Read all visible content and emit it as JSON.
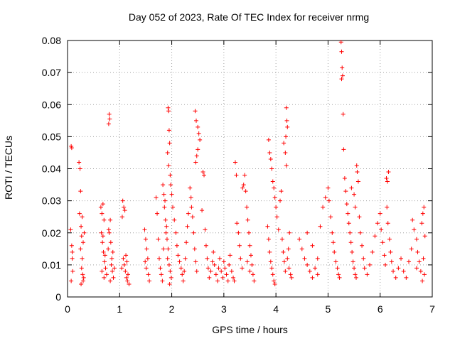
{
  "chart_data": {
    "type": "scatter",
    "title": "Day 052 of 2023, Rate Of TEC Index for receiver nrmg",
    "xlabel": "GPS time / hours",
    "ylabel": "ROTI / TECUs",
    "xlim": [
      0,
      7
    ],
    "ylim": [
      0,
      0.08
    ],
    "xticks": [
      "0",
      "1",
      "2",
      "3",
      "4",
      "5",
      "6",
      "7"
    ],
    "yticks": [
      "0",
      "0.01",
      "0.02",
      "0.03",
      "0.04",
      "0.05",
      "0.06",
      "0.07",
      "0.08"
    ],
    "grid": true,
    "marker": "+",
    "color": "#ff0000",
    "series": [
      {
        "name": "ROTI",
        "points": [
          [
            0.07,
            0.047
          ],
          [
            0.08,
            0.0465
          ],
          [
            0.06,
            0.021
          ],
          [
            0.08,
            0.016
          ],
          [
            0.09,
            0.012
          ],
          [
            0.1,
            0.008
          ],
          [
            0.07,
            0.005
          ],
          [
            0.09,
            0.014
          ],
          [
            0.22,
            0.042
          ],
          [
            0.24,
            0.04
          ],
          [
            0.25,
            0.033
          ],
          [
            0.23,
            0.026
          ],
          [
            0.26,
            0.022
          ],
          [
            0.27,
            0.019
          ],
          [
            0.25,
            0.015
          ],
          [
            0.28,
            0.012
          ],
          [
            0.27,
            0.009
          ],
          [
            0.29,
            0.007
          ],
          [
            0.3,
            0.005
          ],
          [
            0.26,
            0.004
          ],
          [
            0.31,
            0.006
          ],
          [
            0.28,
            0.025
          ],
          [
            0.32,
            0.02
          ],
          [
            0.3,
            0.017
          ],
          [
            0.64,
            0.028
          ],
          [
            0.66,
            0.026
          ],
          [
            0.68,
            0.029
          ],
          [
            0.7,
            0.024
          ],
          [
            0.65,
            0.02
          ],
          [
            0.67,
            0.017
          ],
          [
            0.69,
            0.014
          ],
          [
            0.71,
            0.011
          ],
          [
            0.73,
            0.009
          ],
          [
            0.75,
            0.007
          ],
          [
            0.66,
            0.008
          ],
          [
            0.7,
            0.006
          ],
          [
            0.72,
            0.013
          ],
          [
            0.68,
            0.019
          ],
          [
            0.8,
            0.057
          ],
          [
            0.81,
            0.0555
          ],
          [
            0.79,
            0.054
          ],
          [
            0.82,
            0.024
          ],
          [
            0.8,
            0.02
          ],
          [
            0.83,
            0.017
          ],
          [
            0.78,
            0.015
          ],
          [
            0.85,
            0.012
          ],
          [
            0.84,
            0.01
          ],
          [
            0.86,
            0.008
          ],
          [
            0.88,
            0.006
          ],
          [
            0.82,
            0.005
          ],
          [
            0.9,
            0.009
          ],
          [
            0.87,
            0.014
          ],
          [
            0.79,
            0.021
          ],
          [
            1.06,
            0.03
          ],
          [
            1.08,
            0.028
          ],
          [
            1.1,
            0.027
          ],
          [
            1.05,
            0.025
          ],
          [
            1.07,
            0.012
          ],
          [
            1.09,
            0.01
          ],
          [
            1.11,
            0.008
          ],
          [
            1.13,
            0.006
          ],
          [
            1.15,
            0.005
          ],
          [
            1.12,
            0.013
          ],
          [
            1.04,
            0.009
          ],
          [
            1.14,
            0.011
          ],
          [
            1.16,
            0.007
          ],
          [
            1.18,
            0.004
          ],
          [
            1.48,
            0.021
          ],
          [
            1.5,
            0.018
          ],
          [
            1.52,
            0.015
          ],
          [
            1.54,
            0.012
          ],
          [
            1.51,
            0.009
          ],
          [
            1.55,
            0.007
          ],
          [
            1.57,
            0.005
          ],
          [
            1.49,
            0.011
          ],
          [
            1.7,
            0.031
          ],
          [
            1.72,
            0.026
          ],
          [
            1.74,
            0.018
          ],
          [
            1.76,
            0.012
          ],
          [
            1.78,
            0.009
          ],
          [
            1.8,
            0.007
          ],
          [
            1.82,
            0.005
          ],
          [
            1.84,
            0.015
          ],
          [
            1.83,
            0.035
          ],
          [
            1.85,
            0.032
          ],
          [
            1.87,
            0.03
          ],
          [
            1.86,
            0.028
          ],
          [
            1.88,
            0.024
          ],
          [
            1.9,
            0.022
          ],
          [
            1.89,
            0.02
          ],
          [
            1.91,
            0.018
          ],
          [
            1.93,
            0.015
          ],
          [
            1.92,
            0.012
          ],
          [
            1.95,
            0.01
          ],
          [
            1.97,
            0.008
          ],
          [
            1.99,
            0.006
          ],
          [
            1.96,
            0.004
          ],
          [
            1.93,
            0.059
          ],
          [
            1.94,
            0.058
          ],
          [
            1.95,
            0.052
          ],
          [
            1.96,
            0.048
          ],
          [
            1.92,
            0.045
          ],
          [
            1.94,
            0.041
          ],
          [
            1.97,
            0.038
          ],
          [
            1.98,
            0.035
          ],
          [
            2.0,
            0.032
          ],
          [
            2.02,
            0.028
          ],
          [
            2.05,
            0.024
          ],
          [
            2.08,
            0.02
          ],
          [
            2.1,
            0.016
          ],
          [
            2.12,
            0.013
          ],
          [
            2.15,
            0.011
          ],
          [
            2.18,
            0.009
          ],
          [
            2.2,
            0.007
          ],
          [
            2.22,
            0.005
          ],
          [
            2.24,
            0.008
          ],
          [
            2.26,
            0.012
          ],
          [
            2.28,
            0.017
          ],
          [
            2.3,
            0.022
          ],
          [
            2.32,
            0.026
          ],
          [
            2.35,
            0.034
          ],
          [
            2.37,
            0.031
          ],
          [
            2.38,
            0.028
          ],
          [
            2.4,
            0.025
          ],
          [
            2.42,
            0.02
          ],
          [
            2.44,
            0.015
          ],
          [
            2.46,
            0.011
          ],
          [
            2.48,
            0.008
          ],
          [
            2.45,
            0.058
          ],
          [
            2.47,
            0.055
          ],
          [
            2.5,
            0.053
          ],
          [
            2.52,
            0.051
          ],
          [
            2.54,
            0.049
          ],
          [
            2.5,
            0.046
          ],
          [
            2.48,
            0.044
          ],
          [
            2.46,
            0.042
          ],
          [
            2.6,
            0.039
          ],
          [
            2.62,
            0.038
          ],
          [
            2.58,
            0.027
          ],
          [
            2.64,
            0.021
          ],
          [
            2.66,
            0.016
          ],
          [
            2.68,
            0.012
          ],
          [
            2.7,
            0.009
          ],
          [
            2.72,
            0.006
          ],
          [
            2.75,
            0.008
          ],
          [
            2.78,
            0.011
          ],
          [
            2.8,
            0.014
          ],
          [
            2.82,
            0.01
          ],
          [
            2.85,
            0.007
          ],
          [
            2.88,
            0.005
          ],
          [
            2.9,
            0.009
          ],
          [
            2.92,
            0.012
          ],
          [
            2.95,
            0.008
          ],
          [
            2.98,
            0.006
          ],
          [
            3.0,
            0.011
          ],
          [
            3.02,
            0.009
          ],
          [
            3.05,
            0.007
          ],
          [
            3.08,
            0.005
          ],
          [
            3.1,
            0.01
          ],
          [
            3.12,
            0.013
          ],
          [
            3.15,
            0.008
          ],
          [
            3.18,
            0.006
          ],
          [
            3.2,
            0.005
          ],
          [
            3.22,
            0.042
          ],
          [
            3.24,
            0.038
          ],
          [
            3.25,
            0.023
          ],
          [
            3.28,
            0.02
          ],
          [
            3.3,
            0.016
          ],
          [
            3.32,
            0.012
          ],
          [
            3.35,
            0.009
          ],
          [
            3.36,
            0.034
          ],
          [
            3.38,
            0.035
          ],
          [
            3.4,
            0.038
          ],
          [
            3.42,
            0.033
          ],
          [
            3.44,
            0.028
          ],
          [
            3.46,
            0.024
          ],
          [
            3.48,
            0.02
          ],
          [
            3.5,
            0.016
          ],
          [
            3.52,
            0.013
          ],
          [
            3.54,
            0.01
          ],
          [
            3.56,
            0.007
          ],
          [
            3.58,
            0.005
          ],
          [
            3.45,
            0.011
          ],
          [
            3.5,
            0.008
          ],
          [
            3.86,
            0.049
          ],
          [
            3.88,
            0.045
          ],
          [
            3.9,
            0.043
          ],
          [
            3.92,
            0.04
          ],
          [
            3.94,
            0.036
          ],
          [
            3.96,
            0.034
          ],
          [
            3.98,
            0.031
          ],
          [
            4.0,
            0.028
          ],
          [
            3.84,
            0.022
          ],
          [
            3.86,
            0.018
          ],
          [
            3.88,
            0.014
          ],
          [
            3.9,
            0.011
          ],
          [
            3.92,
            0.009
          ],
          [
            3.94,
            0.007
          ],
          [
            3.96,
            0.005
          ],
          [
            3.98,
            0.004
          ],
          [
            4.02,
            0.025
          ],
          [
            4.05,
            0.021
          ],
          [
            4.08,
            0.03
          ],
          [
            4.1,
            0.033
          ],
          [
            4.12,
            0.018
          ],
          [
            4.14,
            0.014
          ],
          [
            4.16,
            0.011
          ],
          [
            4.18,
            0.008
          ],
          [
            4.2,
            0.059
          ],
          [
            4.21,
            0.055
          ],
          [
            4.22,
            0.053
          ],
          [
            4.19,
            0.05
          ],
          [
            4.18,
            0.045
          ],
          [
            4.2,
            0.041
          ],
          [
            4.15,
            0.048
          ],
          [
            4.22,
            0.012
          ],
          [
            4.25,
            0.009
          ],
          [
            4.28,
            0.007
          ],
          [
            4.3,
            0.006
          ],
          [
            4.24,
            0.015
          ],
          [
            4.26,
            0.02
          ],
          [
            4.45,
            0.018
          ],
          [
            4.5,
            0.015
          ],
          [
            4.55,
            0.012
          ],
          [
            4.6,
            0.01
          ],
          [
            4.65,
            0.008
          ],
          [
            4.7,
            0.006
          ],
          [
            4.75,
            0.009
          ],
          [
            4.8,
            0.012
          ],
          [
            4.85,
            0.022
          ],
          [
            4.9,
            0.028
          ],
          [
            4.95,
            0.031
          ],
          [
            5.0,
            0.034
          ],
          [
            5.02,
            0.03
          ],
          [
            5.05,
            0.025
          ],
          [
            5.08,
            0.02
          ],
          [
            5.1,
            0.017
          ],
          [
            5.12,
            0.014
          ],
          [
            5.15,
            0.011
          ],
          [
            5.18,
            0.009
          ],
          [
            5.2,
            0.007
          ],
          [
            5.22,
            0.006
          ],
          [
            4.6,
            0.02
          ],
          [
            4.7,
            0.016
          ],
          [
            4.8,
            0.007
          ],
          [
            5.25,
            0.0795
          ],
          [
            5.26,
            0.0765
          ],
          [
            5.27,
            0.0715
          ],
          [
            5.28,
            0.069
          ],
          [
            5.26,
            0.068
          ],
          [
            5.29,
            0.057
          ],
          [
            5.3,
            0.046
          ],
          [
            5.32,
            0.037
          ],
          [
            5.34,
            0.033
          ],
          [
            5.36,
            0.029
          ],
          [
            5.38,
            0.026
          ],
          [
            5.4,
            0.023
          ],
          [
            5.42,
            0.02
          ],
          [
            5.44,
            0.017
          ],
          [
            5.46,
            0.014
          ],
          [
            5.48,
            0.011
          ],
          [
            5.5,
            0.009
          ],
          [
            5.52,
            0.007
          ],
          [
            5.54,
            0.006
          ],
          [
            5.45,
            0.034
          ],
          [
            5.5,
            0.032
          ],
          [
            5.52,
            0.028
          ],
          [
            5.55,
            0.041
          ],
          [
            5.56,
            0.039
          ],
          [
            5.58,
            0.036
          ],
          [
            5.6,
            0.025
          ],
          [
            5.62,
            0.02
          ],
          [
            5.65,
            0.016
          ],
          [
            5.68,
            0.012
          ],
          [
            5.7,
            0.009
          ],
          [
            5.75,
            0.007
          ],
          [
            5.8,
            0.01
          ],
          [
            5.85,
            0.014
          ],
          [
            5.9,
            0.019
          ],
          [
            5.95,
            0.023
          ],
          [
            6.0,
            0.026
          ],
          [
            6.02,
            0.021
          ],
          [
            6.05,
            0.017
          ],
          [
            6.08,
            0.013
          ],
          [
            6.1,
            0.01
          ],
          [
            6.12,
            0.037
          ],
          [
            6.14,
            0.036
          ],
          [
            6.16,
            0.039
          ],
          [
            6.13,
            0.028
          ],
          [
            6.15,
            0.023
          ],
          [
            6.18,
            0.018
          ],
          [
            6.2,
            0.014
          ],
          [
            6.22,
            0.011
          ],
          [
            6.25,
            0.008
          ],
          [
            6.3,
            0.006
          ],
          [
            6.35,
            0.009
          ],
          [
            6.4,
            0.012
          ],
          [
            6.45,
            0.008
          ],
          [
            6.5,
            0.006
          ],
          [
            6.55,
            0.011
          ],
          [
            6.6,
            0.015
          ],
          [
            6.62,
            0.024
          ],
          [
            6.65,
            0.021
          ],
          [
            6.7,
            0.018
          ],
          [
            6.72,
            0.014
          ],
          [
            6.75,
            0.011
          ],
          [
            6.78,
            0.008
          ],
          [
            6.8,
            0.023
          ],
          [
            6.82,
            0.026
          ],
          [
            6.84,
            0.028
          ],
          [
            6.86,
            0.019
          ],
          [
            6.83,
            0.012
          ],
          [
            6.85,
            0.007
          ],
          [
            6.81,
            0.005
          ],
          [
            6.7,
            0.009
          ]
        ]
      }
    ]
  }
}
